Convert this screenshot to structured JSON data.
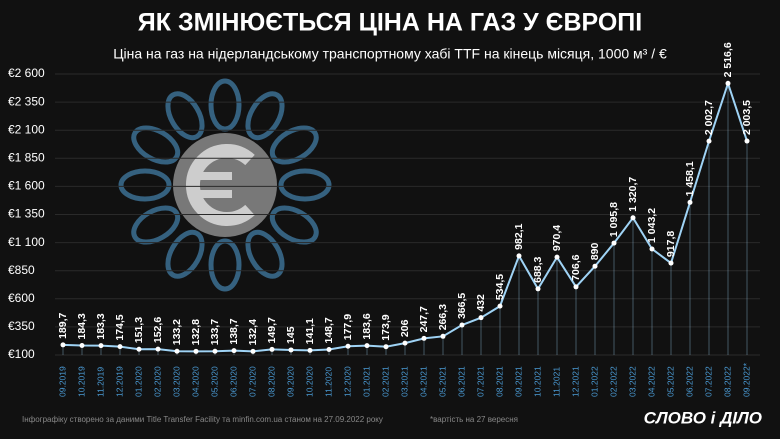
{
  "chart_data": {
    "type": "line",
    "title": "ЯК ЗМІНЮЄТЬСЯ ЦІНА НА ГАЗ У ЄВРОПІ",
    "subtitle": "Ціна на газ на нідерландському транспортному хабі TTF на кінець місяця, 1000 м³ / €",
    "categories": [
      "09.2019",
      "10.2019",
      "11.2019",
      "12.2019",
      "01.2020",
      "02.2020",
      "03.2020",
      "04.2020",
      "05.2020",
      "06.2020",
      "07.2020",
      "08.2020",
      "09.2020",
      "10.2020",
      "11.2020",
      "12.2020",
      "01.2021",
      "02.2021",
      "03.2021",
      "04.2021",
      "05.2021",
      "06.2021",
      "07.2021",
      "08.2021",
      "09.2021",
      "10.2021",
      "11.2021",
      "12.2021",
      "01.2022",
      "02.2022",
      "03.2022",
      "04.2022",
      "05.2022",
      "06.2022",
      "07.2022",
      "08.2022",
      "09.2022*"
    ],
    "series": [
      {
        "name": "TTF",
        "color": "#9fd3f5",
        "values": [
          189.7,
          184.3,
          183.3,
          174.5,
          151.3,
          152.6,
          133.2,
          132.8,
          133.7,
          138.7,
          132.4,
          149.7,
          145,
          141.1,
          148.7,
          177.9,
          183.6,
          173.9,
          206,
          247.7,
          266.3,
          366.5,
          432,
          534.5,
          982.1,
          688.3,
          970.4,
          706.6,
          890,
          1095.8,
          1320.7,
          1043.2,
          917.8,
          1458.1,
          2002.7,
          2516.6,
          2003.5
        ],
        "value_labels": [
          "189,7",
          "184,3",
          "183,3",
          "174,5",
          "151,3",
          "152,6",
          "133,2",
          "132,8",
          "133,7",
          "138,7",
          "132,4",
          "149,7",
          "145",
          "141,1",
          "148,7",
          "177,9",
          "183,6",
          "173,9",
          "206",
          "247,7",
          "266,3",
          "366,5",
          "432",
          "534,5",
          "982,1",
          "688,3",
          "970,4",
          "706,6",
          "890",
          "1 095,8",
          "1 320,7",
          "1 043,2",
          "917,8",
          "1 458,1",
          "2 002,7",
          "2 516,6",
          "2 003,5"
        ]
      }
    ],
    "ylim": [
      100,
      2600
    ],
    "yticks": [
      {
        "value": 100,
        "label": "€100"
      },
      {
        "value": 350,
        "label": "€350"
      },
      {
        "value": 600,
        "label": "€600"
      },
      {
        "value": 850,
        "label": "€850"
      },
      {
        "value": 1100,
        "label": "€1 100"
      },
      {
        "value": 1350,
        "label": "€1 350"
      },
      {
        "value": 1600,
        "label": "€1 600"
      },
      {
        "value": 1850,
        "label": "€1 850"
      },
      {
        "value": 2100,
        "label": "€2 100"
      },
      {
        "value": 2350,
        "label": "€2 350"
      },
      {
        "value": 2600,
        "label": "€2 600"
      }
    ],
    "grid": true
  },
  "footer": {
    "source": "Інфографіку створено за даними Title Transfer Facility та minfin.com.ua станом на 27.09.2022 року",
    "note": "*вартість на 27 вересня",
    "logo": "СЛОВО і ДІЛО"
  }
}
